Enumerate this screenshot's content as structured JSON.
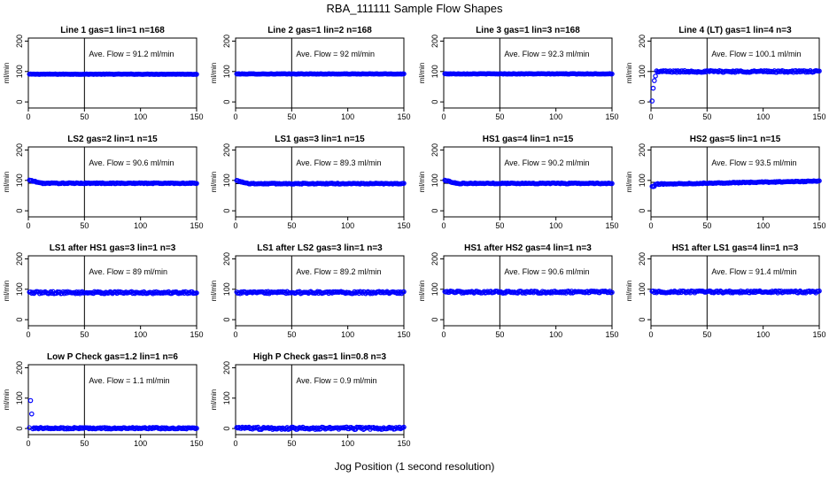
{
  "figure": {
    "title": "RBA_111111  Sample Flow Shapes",
    "xlabel": "Jog Position (1 second resolution)"
  },
  "colors": {
    "points": "#0000ff",
    "axis": "#000000"
  },
  "chart_data": [
    {
      "type": "scatter",
      "title": "Line 1 gas=1 lin=1 n=168",
      "annotation": "Ave. Flow = 91.2  ml/min",
      "ylabel": "ml/min",
      "mean": 91.2,
      "shape": "flat",
      "xlim": [
        0,
        150
      ],
      "ylim": [
        -20,
        210
      ],
      "xticks": [
        0,
        50,
        100,
        150
      ],
      "yticks": [
        0,
        100,
        200
      ],
      "vline": 50,
      "hline": 91.2
    },
    {
      "type": "scatter",
      "title": "Line 2 gas=1 lin=2 n=168",
      "annotation": "Ave. Flow = 92  ml/min",
      "ylabel": "ml/min",
      "mean": 92,
      "shape": "flat",
      "xlim": [
        0,
        150
      ],
      "ylim": [
        -20,
        210
      ],
      "xticks": [
        0,
        50,
        100,
        150
      ],
      "yticks": [
        0,
        100,
        200
      ],
      "vline": 50,
      "hline": 92
    },
    {
      "type": "scatter",
      "title": "Line 3 gas=1 lin=3 n=168",
      "annotation": "Ave. Flow = 92.3  ml/min",
      "ylabel": "ml/min",
      "mean": 92.3,
      "shape": "flat",
      "xlim": [
        0,
        150
      ],
      "ylim": [
        -20,
        210
      ],
      "xticks": [
        0,
        50,
        100,
        150
      ],
      "yticks": [
        0,
        100,
        200
      ],
      "vline": 50,
      "hline": 92.3
    },
    {
      "type": "scatter",
      "title": "Line 4 (LT) gas=1 lin=4 n=3",
      "annotation": "Ave. Flow = 100.1  ml/min",
      "ylabel": "ml/min",
      "mean": 100.1,
      "shape": "rise",
      "xlim": [
        0,
        150
      ],
      "ylim": [
        -20,
        210
      ],
      "xticks": [
        0,
        50,
        100,
        150
      ],
      "yticks": [
        0,
        100,
        200
      ],
      "vline": 50,
      "hline": 100.1
    },
    {
      "type": "scatter",
      "title": "LS2 gas=2 lin=1 n=15",
      "annotation": "Ave. Flow = 90.6  ml/min",
      "ylabel": "ml/min",
      "mean": 90.6,
      "shape": "hump",
      "xlim": [
        0,
        150
      ],
      "ylim": [
        -20,
        210
      ],
      "xticks": [
        0,
        50,
        100,
        150
      ],
      "yticks": [
        0,
        100,
        200
      ],
      "vline": 50,
      "hline": 90.6
    },
    {
      "type": "scatter",
      "title": "LS1 gas=3 lin=1 n=15",
      "annotation": "Ave. Flow = 89.3  ml/min",
      "ylabel": "ml/min",
      "mean": 89.3,
      "shape": "hump",
      "xlim": [
        0,
        150
      ],
      "ylim": [
        -20,
        210
      ],
      "xticks": [
        0,
        50,
        100,
        150
      ],
      "yticks": [
        0,
        100,
        200
      ],
      "vline": 50,
      "hline": 89.3
    },
    {
      "type": "scatter",
      "title": "HS1 gas=4 lin=1 n=15",
      "annotation": "Ave. Flow = 90.2  ml/min",
      "ylabel": "ml/min",
      "mean": 90.2,
      "shape": "hump",
      "xlim": [
        0,
        150
      ],
      "ylim": [
        -20,
        210
      ],
      "xticks": [
        0,
        50,
        100,
        150
      ],
      "yticks": [
        0,
        100,
        200
      ],
      "vline": 50,
      "hline": 90.2
    },
    {
      "type": "scatter",
      "title": "HS2 gas=5 lin=1 n=15",
      "annotation": "Ave. Flow = 93.5  ml/min",
      "ylabel": "ml/min",
      "mean": 93.5,
      "shape": "slowrise",
      "xlim": [
        0,
        150
      ],
      "ylim": [
        -20,
        210
      ],
      "xticks": [
        0,
        50,
        100,
        150
      ],
      "yticks": [
        0,
        100,
        200
      ],
      "vline": 50,
      "hline": 93.5
    },
    {
      "type": "scatter",
      "title": "LS1 after HS1 gas=3 lin=1 n=3",
      "annotation": "Ave. Flow = 89  ml/min",
      "ylabel": "ml/min",
      "mean": 89,
      "shape": "noisy",
      "xlim": [
        0,
        150
      ],
      "ylim": [
        -20,
        210
      ],
      "xticks": [
        0,
        50,
        100,
        150
      ],
      "yticks": [
        0,
        100,
        200
      ],
      "vline": 50,
      "hline": 89
    },
    {
      "type": "scatter",
      "title": "LS1 after LS2 gas=3 lin=1 n=3",
      "annotation": "Ave. Flow = 89.2  ml/min",
      "ylabel": "ml/min",
      "mean": 89.2,
      "shape": "noisy",
      "xlim": [
        0,
        150
      ],
      "ylim": [
        -20,
        210
      ],
      "xticks": [
        0,
        50,
        100,
        150
      ],
      "yticks": [
        0,
        100,
        200
      ],
      "vline": 50,
      "hline": 89.2
    },
    {
      "type": "scatter",
      "title": "HS1 after HS2 gas=4 lin=1 n=3",
      "annotation": "Ave. Flow = 90.6  ml/min",
      "ylabel": "ml/min",
      "mean": 90.6,
      "shape": "noisy",
      "xlim": [
        0,
        150
      ],
      "ylim": [
        -20,
        210
      ],
      "xticks": [
        0,
        50,
        100,
        150
      ],
      "yticks": [
        0,
        100,
        200
      ],
      "vline": 50,
      "hline": 90.6
    },
    {
      "type": "scatter",
      "title": "HS1 after LS1 gas=4 lin=1 n=3",
      "annotation": "Ave. Flow = 91.4  ml/min",
      "ylabel": "ml/min",
      "mean": 91.4,
      "shape": "noisy",
      "xlim": [
        0,
        150
      ],
      "ylim": [
        -20,
        210
      ],
      "xticks": [
        0,
        50,
        100,
        150
      ],
      "yticks": [
        0,
        100,
        200
      ],
      "vline": 50,
      "hline": 91.4
    },
    {
      "type": "scatter",
      "title": "Low P Check gas=1.2 lin=1 n=6",
      "annotation": "Ave. Flow = 1.1  ml/min",
      "ylabel": "ml/min",
      "mean": 1.1,
      "shape": "spike",
      "xlim": [
        0,
        150
      ],
      "ylim": [
        -20,
        210
      ],
      "xticks": [
        0,
        50,
        100,
        150
      ],
      "yticks": [
        0,
        100,
        200
      ],
      "vline": 50,
      "hline": 1.1
    },
    {
      "type": "scatter",
      "title": "High P Check gas=1 lin=0.8 n=3",
      "annotation": "Ave. Flow = 0.9  ml/min",
      "ylabel": "ml/min",
      "mean": 0.9,
      "shape": "zeronoisy",
      "xlim": [
        0,
        150
      ],
      "ylim": [
        -20,
        210
      ],
      "xticks": [
        0,
        50,
        100,
        150
      ],
      "yticks": [
        0,
        100,
        200
      ],
      "vline": 50,
      "hline": 0.9
    }
  ]
}
